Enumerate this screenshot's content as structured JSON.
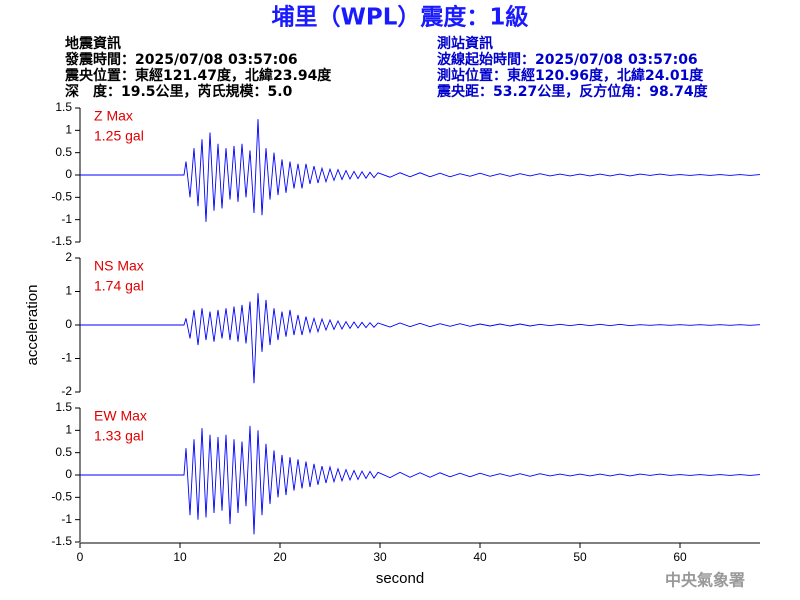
{
  "header": {
    "title": "埔里（WPL）震度：1級",
    "event": [
      "地震資訊",
      "發震時間：2025/07/08 03:57:06",
      "震央位置：東經121.47度，北緯23.94度",
      "深　度：19.5公里，芮氏規模：5.0"
    ],
    "station": [
      "測站資訊",
      "波線起始時間：2025/07/08 03:57:06",
      "測站位置：東經120.96度，北緯24.01度",
      "震央距：53.27公里，反方位角：98.74度"
    ]
  },
  "footer": {
    "agency": "中央氣象署"
  },
  "chart_data": [
    {
      "type": "line",
      "label": "Z Max",
      "max_label": "1.25 gal",
      "color": "#0000ff",
      "xlim": [
        0,
        68
      ],
      "ylim": [
        -1.5,
        1.5
      ],
      "yticks": [
        1.5,
        1,
        0.5,
        0,
        -0.5,
        -1,
        -1.5
      ],
      "x": [
        0,
        10.4,
        10.6,
        11,
        11.4,
        11.8,
        12.2,
        12.6,
        13,
        13.4,
        13.8,
        14.2,
        14.6,
        15,
        15.4,
        15.8,
        16.2,
        16.6,
        17,
        17.4,
        17.8,
        18.2,
        18.6,
        19,
        19.4,
        19.8,
        20.2,
        20.6,
        21,
        21.4,
        21.8,
        22.2,
        22.6,
        23,
        23.4,
        23.8,
        24.2,
        24.6,
        25,
        25.4,
        25.8,
        26.2,
        26.6,
        27,
        27.4,
        27.8,
        28.2,
        28.6,
        29,
        29.4,
        29.8,
        31,
        32,
        33,
        34,
        35,
        36,
        37,
        38,
        39,
        40,
        41,
        42,
        43,
        44,
        45,
        46,
        47,
        48,
        49,
        50,
        51,
        52,
        53,
        54,
        55,
        56,
        57,
        58,
        59,
        60,
        61,
        62,
        63,
        64,
        65,
        66,
        67,
        68
      ],
      "values": [
        0,
        0,
        0.3,
        -0.5,
        0.6,
        -0.7,
        0.8,
        -1.05,
        0.95,
        -0.8,
        0.7,
        -0.75,
        0.6,
        -0.55,
        0.65,
        -0.6,
        0.7,
        -0.5,
        0.55,
        -0.85,
        1.25,
        -0.9,
        0.6,
        -0.55,
        0.5,
        -0.45,
        0.35,
        -0.4,
        0.3,
        -0.3,
        0.25,
        -0.3,
        0.25,
        -0.2,
        0.2,
        -0.18,
        0.15,
        -0.15,
        0.13,
        -0.12,
        0.12,
        -0.1,
        0.1,
        -0.09,
        0.08,
        -0.08,
        0.07,
        -0.07,
        0.06,
        -0.06,
        0.05,
        -0.05,
        0.05,
        -0.04,
        0.05,
        -0.04,
        0.04,
        -0.04,
        0.03,
        -0.03,
        0.04,
        -0.03,
        0.03,
        -0.03,
        0.03,
        -0.02,
        0.03,
        -0.02,
        0.02,
        -0.02,
        0.02,
        -0.02,
        0.02,
        -0.02,
        0.02,
        -0.02,
        0.02,
        -0.01,
        0.02,
        -0.01,
        0.01,
        -0.01,
        0.01,
        -0.01,
        0.01,
        -0.01,
        0.01,
        -0.01,
        0.01
      ]
    },
    {
      "type": "line",
      "label": "NS Max",
      "max_label": "1.74 gal",
      "color": "#0000ff",
      "ylabel": "acceleration",
      "xlim": [
        0,
        68
      ],
      "ylim": [
        -2,
        2
      ],
      "yticks": [
        2,
        1,
        0,
        -1,
        -2
      ],
      "x": [
        0,
        10.4,
        10.6,
        11,
        11.4,
        11.8,
        12.2,
        12.6,
        13,
        13.4,
        13.8,
        14.2,
        14.6,
        15,
        15.4,
        15.8,
        16.2,
        16.6,
        17,
        17.4,
        17.8,
        18.2,
        18.6,
        19,
        19.4,
        19.8,
        20.2,
        20.6,
        21,
        21.4,
        21.8,
        22.2,
        22.6,
        23,
        23.4,
        23.8,
        24.2,
        24.6,
        25,
        25.4,
        25.8,
        26.2,
        26.6,
        27,
        27.4,
        27.8,
        28.2,
        28.6,
        29,
        29.4,
        29.8,
        31,
        32,
        33,
        34,
        35,
        36,
        37,
        38,
        39,
        40,
        41,
        42,
        43,
        44,
        45,
        46,
        47,
        48,
        49,
        50,
        51,
        52,
        53,
        54,
        55,
        56,
        57,
        58,
        59,
        60,
        61,
        62,
        63,
        64,
        65,
        66,
        67,
        68
      ],
      "values": [
        0,
        0,
        0.2,
        -0.4,
        0.45,
        -0.6,
        0.5,
        -0.45,
        0.4,
        -0.5,
        0.45,
        -0.4,
        0.5,
        -0.45,
        0.55,
        -0.5,
        0.6,
        -0.55,
        0.7,
        -1.74,
        0.95,
        -0.8,
        0.75,
        -0.6,
        0.5,
        -0.45,
        0.4,
        -0.35,
        0.45,
        -0.3,
        0.3,
        -0.3,
        0.25,
        -0.22,
        0.2,
        -0.2,
        0.18,
        -0.15,
        0.15,
        -0.13,
        0.12,
        -0.12,
        0.1,
        -0.1,
        0.09,
        -0.09,
        0.08,
        -0.08,
        0.07,
        -0.07,
        0.06,
        -0.06,
        0.06,
        -0.05,
        0.05,
        -0.05,
        0.04,
        -0.04,
        0.04,
        -0.04,
        0.03,
        -0.03,
        0.03,
        -0.03,
        0.03,
        -0.03,
        0.02,
        -0.02,
        0.02,
        -0.02,
        0.02,
        -0.02,
        0.02,
        -0.02,
        0.02,
        -0.02,
        0.01,
        -0.01,
        0.01,
        -0.01,
        0.01,
        -0.01,
        0.01,
        -0.01,
        0.01,
        -0.01,
        0.01,
        -0.01,
        0.01
      ]
    },
    {
      "type": "line",
      "label": "EW Max",
      "max_label": "1.33 gal",
      "color": "#0000ff",
      "xlabel": "second",
      "xlim": [
        0,
        68
      ],
      "ylim": [
        -1.5,
        1.5
      ],
      "yticks": [
        1.5,
        1,
        0.5,
        0,
        -0.5,
        -1,
        -1.5
      ],
      "xticks": [
        0,
        10,
        20,
        30,
        40,
        50,
        60
      ],
      "x": [
        0,
        10.4,
        10.6,
        11,
        11.4,
        11.8,
        12.2,
        12.6,
        13,
        13.4,
        13.8,
        14.2,
        14.6,
        15,
        15.4,
        15.8,
        16.2,
        16.6,
        17,
        17.4,
        17.8,
        18.2,
        18.6,
        19,
        19.4,
        19.8,
        20.2,
        20.6,
        21,
        21.4,
        21.8,
        22.2,
        22.6,
        23,
        23.4,
        23.8,
        24.2,
        24.6,
        25,
        25.4,
        25.8,
        26.2,
        26.6,
        27,
        27.4,
        27.8,
        28.2,
        28.6,
        29,
        29.4,
        29.8,
        31,
        32,
        33,
        34,
        35,
        36,
        37,
        38,
        39,
        40,
        41,
        42,
        43,
        44,
        45,
        46,
        47,
        48,
        49,
        50,
        51,
        52,
        53,
        54,
        55,
        56,
        57,
        58,
        59,
        60,
        61,
        62,
        63,
        64,
        65,
        66,
        67,
        68
      ],
      "values": [
        0,
        0,
        0.6,
        -0.9,
        0.8,
        -1,
        1.05,
        -0.95,
        0.9,
        -0.85,
        0.85,
        -0.8,
        0.9,
        -1.1,
        0.8,
        -0.85,
        0.75,
        -0.7,
        1.1,
        -1.33,
        1,
        -0.9,
        0.7,
        -0.65,
        0.55,
        -0.5,
        0.45,
        -0.45,
        0.4,
        -0.35,
        0.35,
        -0.3,
        0.3,
        -0.27,
        0.25,
        -0.22,
        0.2,
        -0.18,
        0.18,
        -0.15,
        0.14,
        -0.13,
        0.12,
        -0.11,
        0.1,
        -0.1,
        0.09,
        -0.08,
        0.08,
        -0.07,
        0.06,
        -0.06,
        0.06,
        -0.05,
        0.05,
        -0.05,
        0.05,
        -0.04,
        0.04,
        -0.04,
        0.04,
        -0.03,
        0.03,
        -0.03,
        0.03,
        -0.03,
        0.03,
        -0.02,
        0.02,
        -0.02,
        0.02,
        -0.02,
        0.02,
        -0.02,
        0.02,
        -0.02,
        0.02,
        -0.01,
        0.02,
        -0.01,
        0.01,
        -0.01,
        0.01,
        -0.01,
        0.01,
        -0.01,
        0.01,
        -0.01,
        0.01
      ]
    }
  ]
}
